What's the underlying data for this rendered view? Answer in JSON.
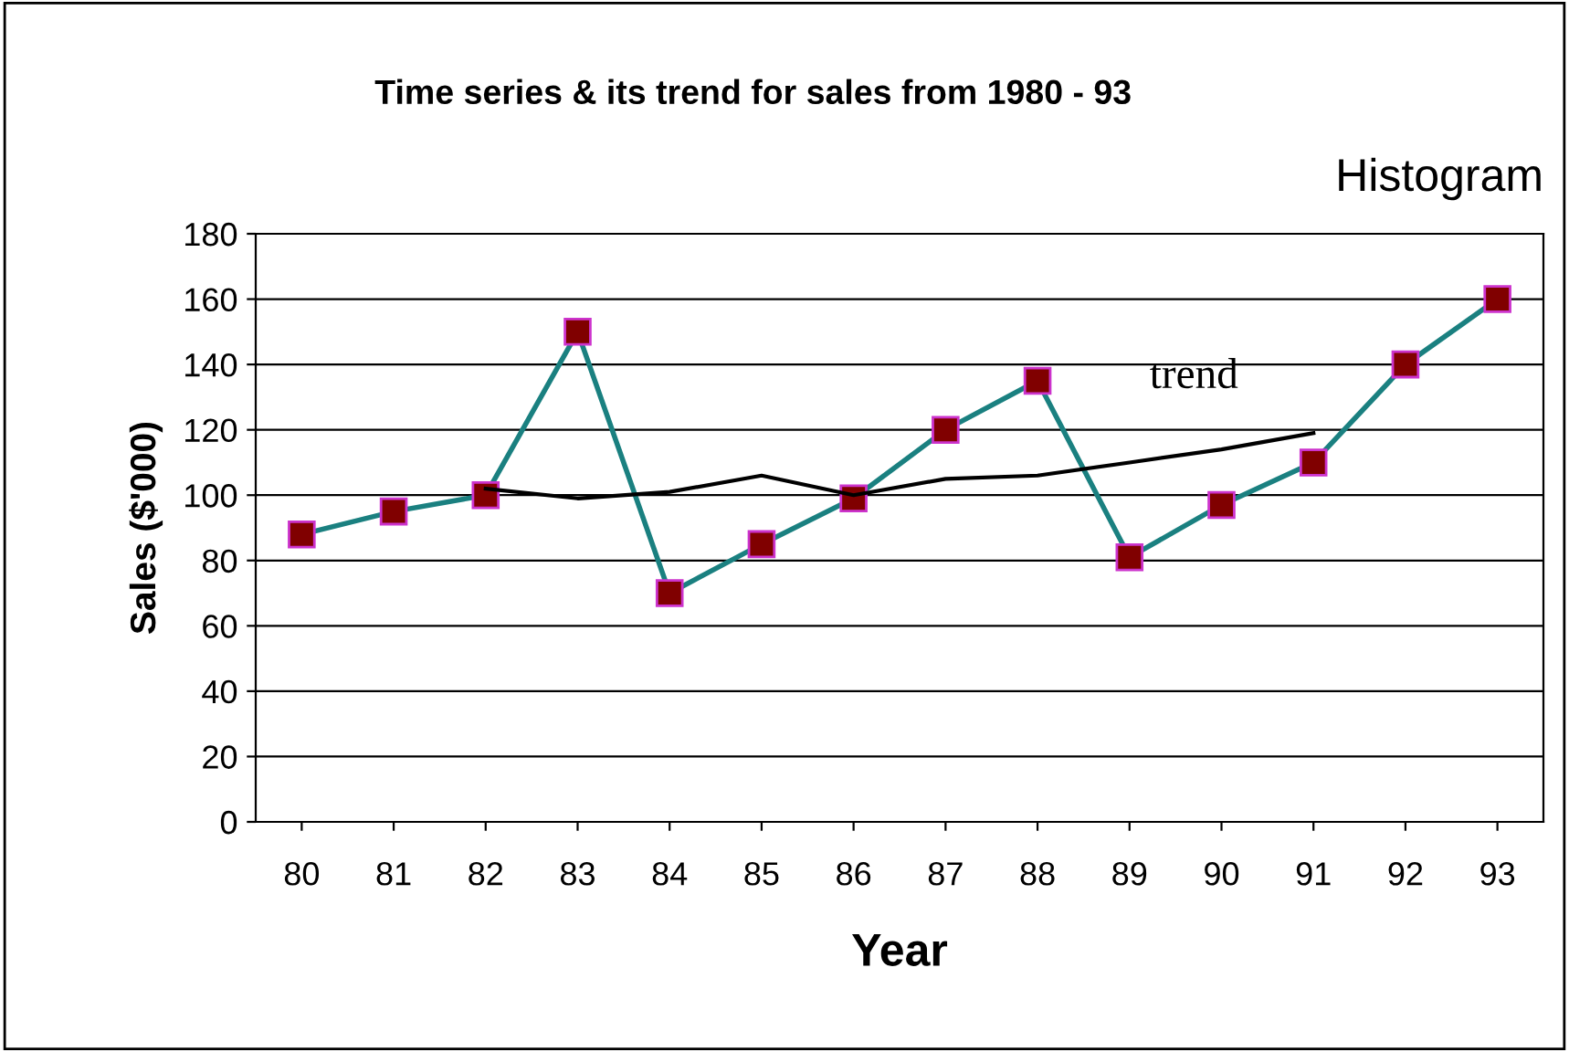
{
  "chart_data": {
    "type": "line",
    "title": "Time series & its trend for sales from 1980 - 93",
    "xlabel": "Year",
    "ylabel": "Sales ($'000)",
    "annotations": [
      "Histogram"
    ],
    "categories": [
      "80",
      "81",
      "82",
      "83",
      "84",
      "85",
      "86",
      "87",
      "88",
      "89",
      "90",
      "91",
      "92",
      "93"
    ],
    "series": [
      {
        "color": "#1a8080",
        "marker": "square",
        "values": [
          88,
          95,
          100,
          150,
          70,
          85,
          99,
          120,
          135,
          81,
          97,
          110,
          140,
          160
        ]
      },
      {
        "name": "trend",
        "color": "#000000",
        "marker": "none",
        "values": [
          null,
          null,
          102,
          99,
          101,
          106,
          100,
          105,
          106,
          110,
          114,
          119,
          null,
          null
        ]
      }
    ],
    "ylim": [
      0,
      180
    ],
    "yticks": [
      0,
      20,
      40,
      60,
      80,
      100,
      120,
      140,
      160,
      180
    ],
    "grid": "y",
    "legend": false
  }
}
